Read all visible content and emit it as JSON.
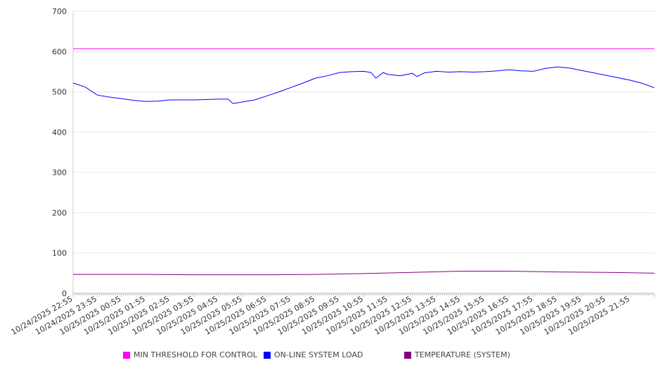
{
  "chart_data": {
    "type": "line",
    "title": "",
    "xlabel": "",
    "ylabel": "",
    "ylim": [
      0,
      700
    ],
    "yticks": [
      0,
      100,
      200,
      300,
      400,
      500,
      600,
      700
    ],
    "xlim_hours": [
      0,
      24
    ],
    "x_tick_labels": [
      "10/24/2025 22:55",
      "10/24/2025 23:55",
      "10/25/2025 00:55",
      "10/25/2025 01:55",
      "10/25/2025 02:55",
      "10/25/2025 03:55",
      "10/25/2025 04:55",
      "10/25/2025 05:55",
      "10/25/2025 06:55",
      "10/25/2025 07:55",
      "10/25/2025 08:55",
      "10/25/2025 09:55",
      "10/25/2025 10:55",
      "10/25/2025 11:55",
      "10/25/2025 12:55",
      "10/25/2025 13:55",
      "10/25/2025 14:55",
      "10/25/2025 15:55",
      "10/25/2025 16:55",
      "10/25/2025 17:55",
      "10/25/2025 18:55",
      "10/25/2025 19:55",
      "10/25/2025 20:55",
      "10/25/2025 21:55"
    ],
    "grid": true,
    "legend_position": "bottom",
    "series": [
      {
        "name": "MIN THRESHOLD FOR CONTROL",
        "color": "#ff00ff",
        "x": [
          0,
          24
        ],
        "values": [
          607,
          607
        ]
      },
      {
        "name": "ON-LINE SYSTEM LOAD",
        "color": "#0000ff",
        "x": [
          0,
          0.5,
          1,
          1.5,
          2,
          2.5,
          3,
          3.5,
          4,
          4.5,
          5,
          5.5,
          6,
          6.4,
          6.6,
          7,
          7.5,
          8,
          8.5,
          9,
          9.5,
          10,
          10.5,
          11,
          11.5,
          12,
          12.3,
          12.5,
          12.8,
          13,
          13.5,
          14,
          14.2,
          14.5,
          15,
          15.5,
          16,
          16.5,
          17,
          17.5,
          18,
          18.5,
          19,
          19.5,
          20,
          20.5,
          21,
          21.5,
          22,
          22.5,
          23,
          23.5,
          24
        ],
        "values": [
          522,
          512,
          492,
          487,
          483,
          479,
          476,
          477,
          480,
          480,
          480,
          481,
          482,
          482,
          471,
          475,
          480,
          490,
          500,
          511,
          522,
          534,
          540,
          548,
          550,
          551,
          548,
          534,
          548,
          543,
          540,
          546,
          538,
          547,
          551,
          549,
          550,
          549,
          550,
          552,
          555,
          552,
          551,
          558,
          562,
          559,
          553,
          547,
          541,
          535,
          529,
          521,
          510
        ]
      },
      {
        "name": "TEMPERATURE (SYSTEM)",
        "color": "#800080",
        "x": [
          0,
          3,
          5,
          8,
          10,
          12,
          14,
          16,
          18,
          20,
          22,
          24
        ],
        "values": [
          47,
          47,
          46,
          46,
          47,
          49,
          52,
          55,
          55,
          53,
          52,
          50
        ]
      }
    ]
  }
}
